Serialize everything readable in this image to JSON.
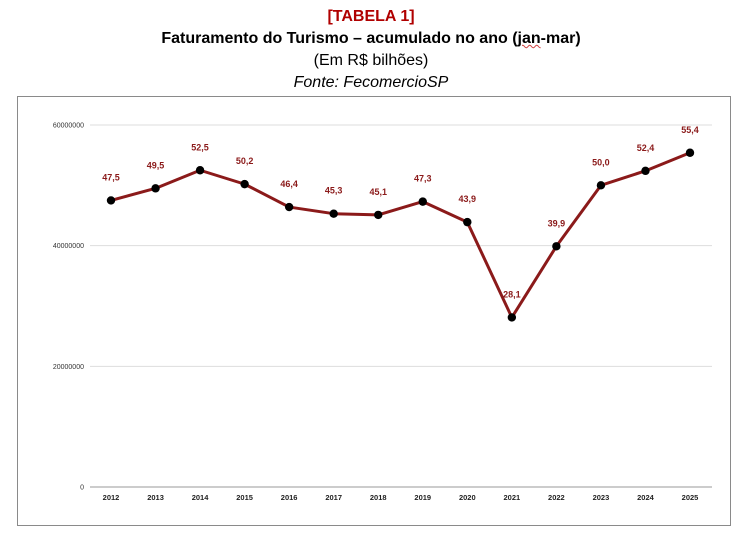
{
  "header": {
    "tag": "[TABELA 1]",
    "title_pre": "Faturamento do Turismo – acumulado no ano (",
    "title_mid": "jan",
    "title_post": "-mar)",
    "subtitle": "(Em R$ bilhões)",
    "source": "Fonte: FecomercioSP"
  },
  "chart_data": {
    "type": "line",
    "x": [
      "2012",
      "2013",
      "2014",
      "2015",
      "2016",
      "2017",
      "2018",
      "2019",
      "2020",
      "2021",
      "2022",
      "2023",
      "2024",
      "2025"
    ],
    "values": [
      47.5,
      49.5,
      52.5,
      50.2,
      46.4,
      45.3,
      45.1,
      47.3,
      43.9,
      28.1,
      39.9,
      50.0,
      52.4,
      55.4
    ],
    "data_labels": [
      "47,5",
      "49,5",
      "52,5",
      "50,2",
      "46,4",
      "45,3",
      "45,1",
      "47,3",
      "43,9",
      "28,1",
      "39,9",
      "50,0",
      "52,4",
      "55,4"
    ],
    "yticks": [
      0,
      20000000,
      40000000,
      60000000
    ],
    "ytick_labels": [
      "0",
      "20000000",
      "40000000",
      "60000000"
    ],
    "ylim": [
      0,
      60000000
    ],
    "value_scale": 1000000,
    "grid": true,
    "line_color": "#8b1a1a",
    "marker_color": "#000000"
  }
}
